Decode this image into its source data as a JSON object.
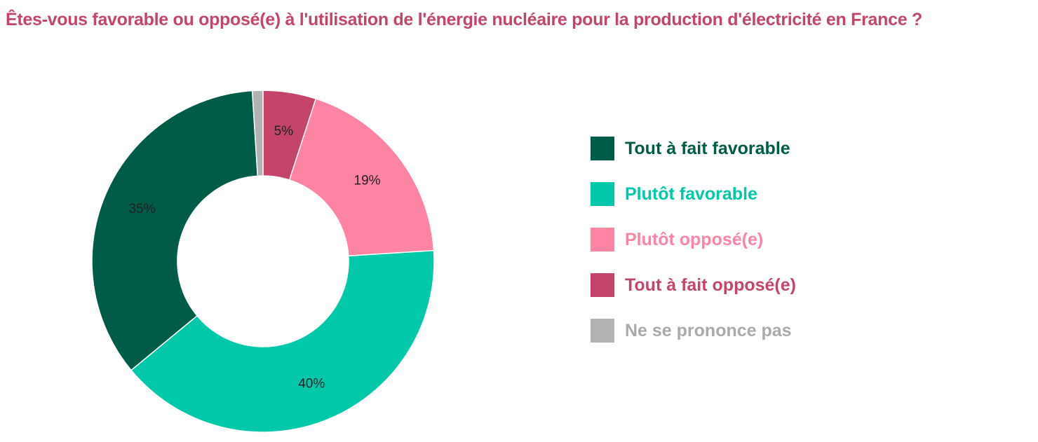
{
  "chart_data": {
    "type": "pie",
    "variant": "donut",
    "title": "Êtes-vous favorable ou opposé(e) à l'utilisation de l'énergie nucléaire pour la production d'électricité en France ?",
    "title_color": "#c4446a",
    "legend_position": "right",
    "slices": [
      {
        "name": "Tout à fait opposé(e)",
        "value": 5,
        "label": "5%",
        "color": "#c4446a",
        "label_color": "#c4446a"
      },
      {
        "name": "Plutôt opposé(e)",
        "value": 19,
        "label": "19%",
        "color": "#ff84a4",
        "label_color": "#ff84a4"
      },
      {
        "name": "Plutôt favorable",
        "value": 40,
        "label": "40%",
        "color": "#00c8a8",
        "label_color": "#00c8a8"
      },
      {
        "name": "Tout à fait favorable",
        "value": 35,
        "label": "35%",
        "color": "#005c46",
        "label_color": "#005c46"
      },
      {
        "name": "Ne se prononce pas",
        "value": 1,
        "label": "",
        "color": "#b2b2b2",
        "label_color": "#aaaaaa"
      }
    ],
    "legend_order": [
      "Tout à fait favorable",
      "Plutôt favorable",
      "Plutôt opposé(e)",
      "Tout à fait opposé(e)",
      "Ne se prononce pas"
    ]
  }
}
